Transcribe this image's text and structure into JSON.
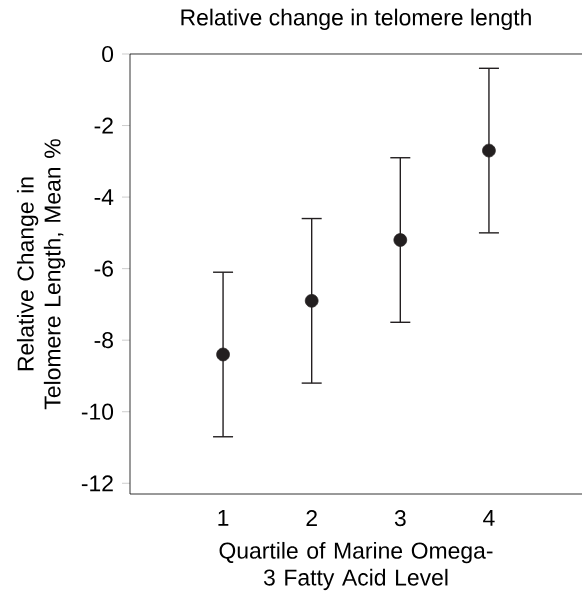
{
  "chart_data": {
    "type": "scatter",
    "title": "Relative change in telomere length",
    "xlabel": "Quartile of Marine Omega-3 Fatty Acid Level",
    "ylabel": "Relative Change in Telomere Length, Mean %",
    "categories": [
      "1",
      "2",
      "3",
      "4"
    ],
    "values": [
      -8.4,
      -6.9,
      -5.2,
      -2.7
    ],
    "errors": [
      2.3,
      2.3,
      2.3,
      2.3
    ],
    "color": "#231f20",
    "marker": "circle",
    "ylim": [
      -12.3,
      0
    ],
    "yticks": [
      0,
      -2,
      -4,
      -6,
      -8,
      -10,
      -12
    ]
  }
}
